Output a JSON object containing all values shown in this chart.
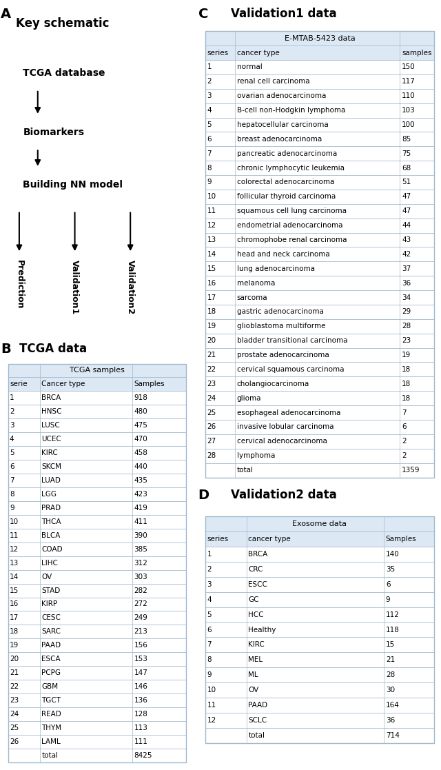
{
  "panel_A_title": "Key schematic",
  "panel_A_items": [
    "TCGA database",
    "Biomarkers",
    "Building NN model"
  ],
  "panel_A_outputs": [
    "Prediction",
    "Validation1",
    "Validation2"
  ],
  "panel_B_title": "TCGA data",
  "panel_B_subtitle": "TCGA samples",
  "panel_B_headers": [
    "serie",
    "Cancer type",
    "Samples"
  ],
  "panel_B_data": [
    [
      "1",
      "BRCA",
      "918"
    ],
    [
      "2",
      "HNSC",
      "480"
    ],
    [
      "3",
      "LUSC",
      "475"
    ],
    [
      "4",
      "UCEC",
      "470"
    ],
    [
      "5",
      "KIRC",
      "458"
    ],
    [
      "6",
      "SKCM",
      "440"
    ],
    [
      "7",
      "LUAD",
      "435"
    ],
    [
      "8",
      "LGG",
      "423"
    ],
    [
      "9",
      "PRAD",
      "419"
    ],
    [
      "10",
      "THCA",
      "411"
    ],
    [
      "11",
      "BLCA",
      "390"
    ],
    [
      "12",
      "COAD",
      "385"
    ],
    [
      "13",
      "LIHC",
      "312"
    ],
    [
      "14",
      "OV",
      "303"
    ],
    [
      "15",
      "STAD",
      "282"
    ],
    [
      "16",
      "KIRP",
      "272"
    ],
    [
      "17",
      "CESC",
      "249"
    ],
    [
      "18",
      "SARC",
      "213"
    ],
    [
      "19",
      "PAAD",
      "156"
    ],
    [
      "20",
      "ESCA",
      "153"
    ],
    [
      "21",
      "PCPG",
      "147"
    ],
    [
      "22",
      "GBM",
      "146"
    ],
    [
      "23",
      "TGCT",
      "136"
    ],
    [
      "24",
      "READ",
      "128"
    ],
    [
      "25",
      "THYM",
      "113"
    ],
    [
      "26",
      "LAML",
      "111"
    ],
    [
      "",
      "total",
      "8425"
    ]
  ],
  "panel_C_title": "Validation1 data",
  "panel_C_subtitle": "E-MTAB-5423 data",
  "panel_C_headers": [
    "series",
    "cancer type",
    "samples"
  ],
  "panel_C_data": [
    [
      "1",
      "normal",
      "150"
    ],
    [
      "2",
      "renal cell carcinoma",
      "117"
    ],
    [
      "3",
      "ovarian adenocarcinoma",
      "110"
    ],
    [
      "4",
      "B-cell non-Hodgkin lymphoma",
      "103"
    ],
    [
      "5",
      "hepatocellular carcinoma",
      "100"
    ],
    [
      "6",
      "breast adenocarcinoma",
      "85"
    ],
    [
      "7",
      "pancreatic adenocarcinoma",
      "75"
    ],
    [
      "8",
      "chronic lymphocytic leukemia",
      "68"
    ],
    [
      "9",
      "colorectal adenocarcinoma",
      "51"
    ],
    [
      "10",
      "follicular thyroid carcinoma",
      "47"
    ],
    [
      "11",
      "squamous cell lung carcinoma",
      "47"
    ],
    [
      "12",
      "endometrial adenocarcinoma",
      "44"
    ],
    [
      "13",
      "chromophobe renal carcinoma",
      "43"
    ],
    [
      "14",
      "head and neck carcinoma",
      "42"
    ],
    [
      "15",
      "lung adenocarcinoma",
      "37"
    ],
    [
      "16",
      "melanoma",
      "36"
    ],
    [
      "17",
      "sarcoma",
      "34"
    ],
    [
      "18",
      "gastric adenocarcinoma",
      "29"
    ],
    [
      "19",
      "glioblastoma multiforme",
      "28"
    ],
    [
      "20",
      "bladder transitional carcinoma",
      "23"
    ],
    [
      "21",
      "prostate adenocarcinoma",
      "19"
    ],
    [
      "22",
      "cervical squamous carcinoma",
      "18"
    ],
    [
      "23",
      "cholangiocarcinoma",
      "18"
    ],
    [
      "24",
      "glioma",
      "18"
    ],
    [
      "25",
      "esophageal adenocarcinoma",
      "7"
    ],
    [
      "26",
      "invasive lobular carcinoma",
      "6"
    ],
    [
      "27",
      "cervical adenocarcinoma",
      "2"
    ],
    [
      "28",
      "lymphoma",
      "2"
    ],
    [
      "",
      "total",
      "1359"
    ]
  ],
  "panel_D_title": "Validation2 data",
  "panel_D_subtitle": "Exosome data",
  "panel_D_headers": [
    "series",
    "cancer type",
    "Samples"
  ],
  "panel_D_data": [
    [
      "1",
      "BRCA",
      "140"
    ],
    [
      "2",
      "CRC",
      "35"
    ],
    [
      "3",
      "ESCC",
      "6"
    ],
    [
      "4",
      "GC",
      "9"
    ],
    [
      "5",
      "HCC",
      "112"
    ],
    [
      "6",
      "Healthy",
      "118"
    ],
    [
      "7",
      "KIRC",
      "15"
    ],
    [
      "8",
      "MEL",
      "21"
    ],
    [
      "9",
      "ML",
      "28"
    ],
    [
      "10",
      "OV",
      "30"
    ],
    [
      "11",
      "PAAD",
      "164"
    ],
    [
      "12",
      "SCLC",
      "36"
    ],
    [
      "",
      "total",
      "714"
    ]
  ],
  "table_bg_color": "#dce9f5",
  "table_border_color": "#a0b8cc",
  "text_color_black": "#000000",
  "text_color_blue": "#0000cc",
  "schematic_text_color": "#000000",
  "label_fontsize": 14,
  "title_fontsize": 12,
  "table_text_fontsize": 7.5,
  "subtitle_fontsize": 8
}
